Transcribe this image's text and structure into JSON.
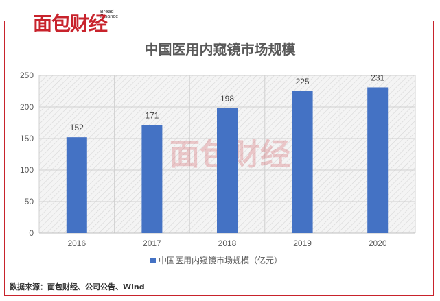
{
  "brand": {
    "logo_text": "面包财经",
    "logo_subtitle": "Bread Finance",
    "watermark": "面包财经",
    "accent_color": "#c8232c"
  },
  "source_note": "数据来源：面包财经、公司公告、Wind",
  "chart_data": {
    "type": "bar",
    "title": "中国医用内窥镜市场规模",
    "categories": [
      "2016",
      "2017",
      "2018",
      "2019",
      "2020"
    ],
    "series": [
      {
        "name": "中国医用内窥镜市场规模（亿元）",
        "values": [
          152,
          171,
          198,
          225,
          231
        ],
        "color": "#4472c4"
      }
    ],
    "data_labels": [
      "152",
      "171",
      "198",
      "225",
      "231"
    ],
    "y_ticks": [
      "0",
      "50",
      "100",
      "150",
      "200",
      "250"
    ],
    "ylim": [
      0,
      250
    ],
    "grid": true,
    "legend_position": "bottom",
    "xlabel": "",
    "ylabel": ""
  }
}
